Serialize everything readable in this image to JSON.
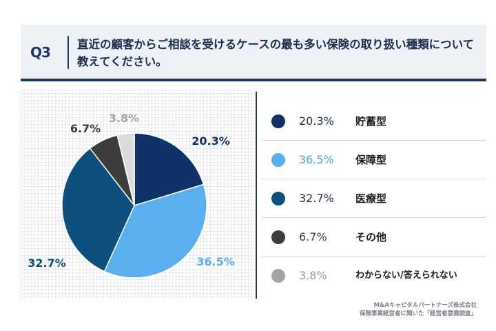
{
  "header": {
    "q_label": "Q3",
    "question": "直近の顧客からご相談を受けるケースの最も多い保険の取り扱い種類について教えてください。"
  },
  "colors": {
    "navy": "#1b3a63",
    "savings": "#0f3268",
    "protection": "#5aafef",
    "medical": "#0d507e",
    "other": "#3d3d3d",
    "unknown": "#a4a4a4",
    "unknown_slice": "#dcdcdc"
  },
  "chart_data": {
    "type": "pie",
    "title": "",
    "slices": [
      {
        "name": "貯蓄型",
        "value": 20.3,
        "label": "20.3%",
        "color": "#0f3268"
      },
      {
        "name": "保障型",
        "value": 36.5,
        "label": "36.5%",
        "color": "#5aafef"
      },
      {
        "name": "医療型",
        "value": 32.7,
        "label": "32.7%",
        "color": "#0d507e"
      },
      {
        "name": "その他",
        "value": 6.7,
        "label": "6.7%",
        "color": "#3d3d3d"
      },
      {
        "name": "わからない/答えられない",
        "value": 3.8,
        "label": "3.8%",
        "color": "#dcdcdc",
        "label_color": "#a4a4a4"
      }
    ],
    "start": "12 o'clock",
    "direction": "clockwise",
    "legend_position": "right"
  },
  "legend": {
    "items": [
      {
        "pct": "20.3%",
        "name": "貯蓄型",
        "color": "#0f3268",
        "pct_color": "#1b2f4d"
      },
      {
        "pct": "36.5%",
        "name": "保障型",
        "color": "#5aafef",
        "pct_color": "#4aa7ef"
      },
      {
        "pct": "32.7%",
        "name": "医療型",
        "color": "#0d507e",
        "pct_color": "#1b2f4d"
      },
      {
        "pct": "6.7%",
        "name": "その他",
        "color": "#3d3d3d",
        "pct_color": "#3d3d3d"
      },
      {
        "pct": "3.8%",
        "name": "わからない/答えられない",
        "color": "#a4a4a4",
        "pct_color": "#9a9a9a"
      }
    ]
  },
  "source": {
    "line1": "M&Aキャピタルパートナーズ株式会社",
    "line2": "保険事業経営者に聞いた「経営者意識調査」"
  }
}
